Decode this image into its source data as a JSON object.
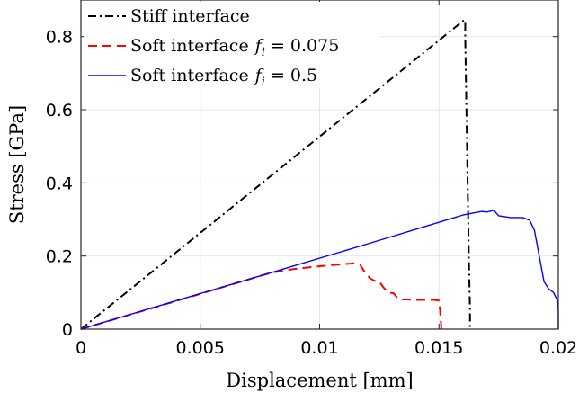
{
  "chart_data": {
    "type": "line",
    "title": "",
    "xlabel": "Displacement [mm]",
    "ylabel": "Stress [GPa]",
    "xlim": [
      0,
      0.02
    ],
    "ylim": [
      0,
      0.9
    ],
    "xticks": [
      0,
      0.005,
      0.01,
      0.015,
      0.02
    ],
    "xtick_labels": [
      "0",
      "0.005",
      "0.01",
      "0.015",
      "0.02"
    ],
    "yticks": [
      0,
      0.2,
      0.4,
      0.6,
      0.8
    ],
    "ytick_labels": [
      "0",
      "0.2",
      "0.4",
      "0.6",
      "0.8"
    ],
    "grid": true,
    "legend_position": "top-left",
    "series": [
      {
        "name": "Stiff interface",
        "color": "#000000",
        "style": "dash-dot",
        "points": [
          [
            0,
            0
          ],
          [
            0.01605,
            0.845
          ],
          [
            0.0161,
            0.84
          ],
          [
            0.0161,
            0.8
          ],
          [
            0.01615,
            0.6
          ],
          [
            0.0162,
            0.4
          ],
          [
            0.01625,
            0.2
          ],
          [
            0.0163,
            0.05
          ],
          [
            0.0163,
            0
          ]
        ]
      },
      {
        "name": "Soft interface f_i = 0.075",
        "color": "#ff0000",
        "style": "dashed",
        "points": [
          [
            0,
            0
          ],
          [
            0.004,
            0.077
          ],
          [
            0.008,
            0.155
          ],
          [
            0.009,
            0.165
          ],
          [
            0.01,
            0.172
          ],
          [
            0.011,
            0.178
          ],
          [
            0.0115,
            0.18
          ],
          [
            0.0117,
            0.175
          ],
          [
            0.0119,
            0.155
          ],
          [
            0.0121,
            0.14
          ],
          [
            0.0123,
            0.132
          ],
          [
            0.0125,
            0.13
          ],
          [
            0.0127,
            0.112
          ],
          [
            0.0129,
            0.1
          ],
          [
            0.0131,
            0.098
          ],
          [
            0.0133,
            0.082
          ],
          [
            0.014,
            0.08
          ],
          [
            0.0148,
            0.08
          ],
          [
            0.015,
            0.078
          ],
          [
            0.01505,
            0.05
          ],
          [
            0.0151,
            0
          ]
        ]
      },
      {
        "name": "Soft interface f_i = 0.5",
        "color": "#0000ff",
        "style": "solid",
        "points": [
          [
            0,
            0
          ],
          [
            0.004,
            0.078
          ],
          [
            0.008,
            0.155
          ],
          [
            0.012,
            0.233
          ],
          [
            0.016,
            0.312
          ],
          [
            0.0168,
            0.322
          ],
          [
            0.017,
            0.32
          ],
          [
            0.0173,
            0.325
          ],
          [
            0.0175,
            0.31
          ],
          [
            0.018,
            0.305
          ],
          [
            0.0185,
            0.305
          ],
          [
            0.0188,
            0.298
          ],
          [
            0.019,
            0.27
          ],
          [
            0.0192,
            0.2
          ],
          [
            0.0194,
            0.13
          ],
          [
            0.0196,
            0.11
          ],
          [
            0.0198,
            0.1
          ],
          [
            0.01995,
            0.08
          ],
          [
            0.02,
            0.05
          ],
          [
            0.02,
            0
          ]
        ]
      }
    ],
    "legend": [
      {
        "text": "Stiff interface",
        "math_base": "",
        "math_sub": "",
        "math_rest": ""
      },
      {
        "text": "Soft interface",
        "math_base": "f",
        "math_sub": "i",
        "math_rest": " = 0.075"
      },
      {
        "text": "Soft interface",
        "math_base": "f",
        "math_sub": "i",
        "math_rest": " = 0.5"
      }
    ]
  }
}
